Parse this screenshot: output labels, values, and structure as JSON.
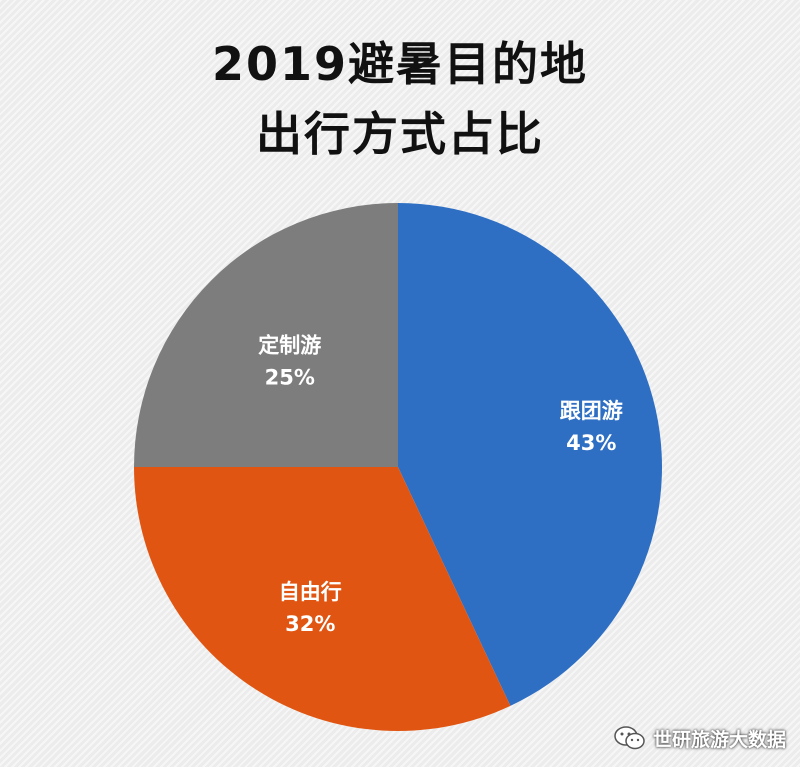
{
  "chart_data": {
    "type": "pie",
    "title_lines": [
      "2019避暑目的地",
      "出行方式占比"
    ],
    "slices": [
      {
        "label": "跟团游",
        "value": 43,
        "value_label": "43%",
        "color": "#2e6fc4"
      },
      {
        "label": "自由行",
        "value": 32,
        "value_label": "32%",
        "color": "#e05512"
      },
      {
        "label": "定制游",
        "value": 25,
        "value_label": "25%",
        "color": "#7d7d7d"
      }
    ],
    "start_angle_deg": 0,
    "direction": "clockwise",
    "legend": "none",
    "labels": "inside"
  },
  "watermark": {
    "text": "世研旅游大数据",
    "icon": "wechat-icon"
  }
}
